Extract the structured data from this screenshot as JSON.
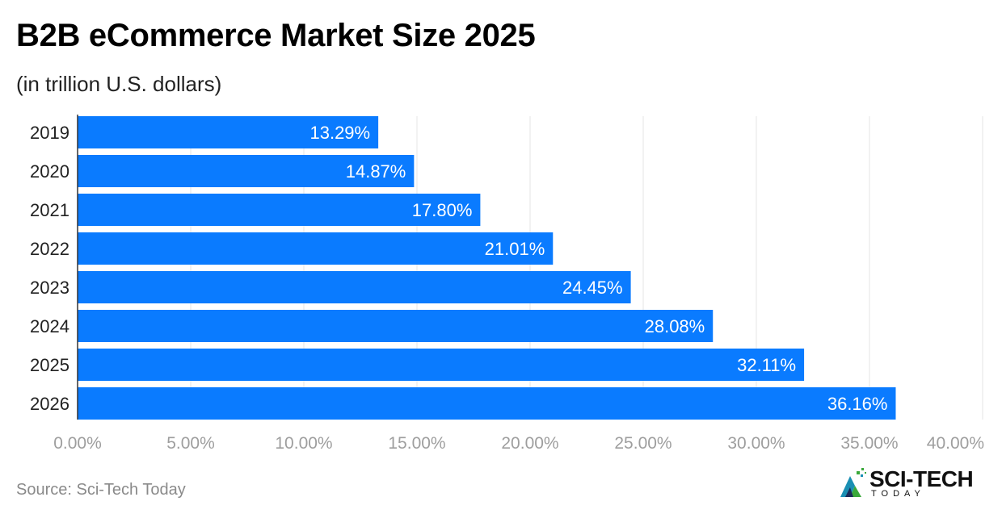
{
  "header": {
    "title": "B2B eCommerce Market Size 2025",
    "subtitle": "(in trillion U.S. dollars)"
  },
  "footer": {
    "source": "Source: Sci-Tech Today",
    "logo_main": "SCI-TECH",
    "logo_sub": "TODAY"
  },
  "colors": {
    "bar": "#0a7bff",
    "grid": "#e4e4e4",
    "axis": "#333333",
    "tick_label": "#9e9e9e",
    "logo_teal": "#1a8fb3",
    "logo_green": "#3aa83a",
    "logo_dark": "#1a2a5a"
  },
  "chart_data": {
    "type": "bar",
    "orientation": "horizontal",
    "title": "B2B eCommerce Market Size 2025",
    "subtitle": "(in trillion U.S. dollars)",
    "categories": [
      "2019",
      "2020",
      "2021",
      "2022",
      "2023",
      "2024",
      "2025",
      "2026"
    ],
    "values": [
      13.29,
      14.87,
      17.8,
      21.01,
      24.45,
      28.08,
      32.11,
      36.16
    ],
    "data_labels": [
      "13.29%",
      "14.87%",
      "17.80%",
      "21.01%",
      "24.45%",
      "28.08%",
      "32.11%",
      "36.16%"
    ],
    "xlim": [
      0,
      40
    ],
    "x_ticks": [
      0,
      5,
      10,
      15,
      20,
      25,
      30,
      35,
      40
    ],
    "x_tick_labels": [
      "0.00%",
      "5.00%",
      "10.00%",
      "15.00%",
      "20.00%",
      "25.00%",
      "30.00%",
      "35.00%",
      "40.00%"
    ],
    "grid": true,
    "legend": "none"
  }
}
